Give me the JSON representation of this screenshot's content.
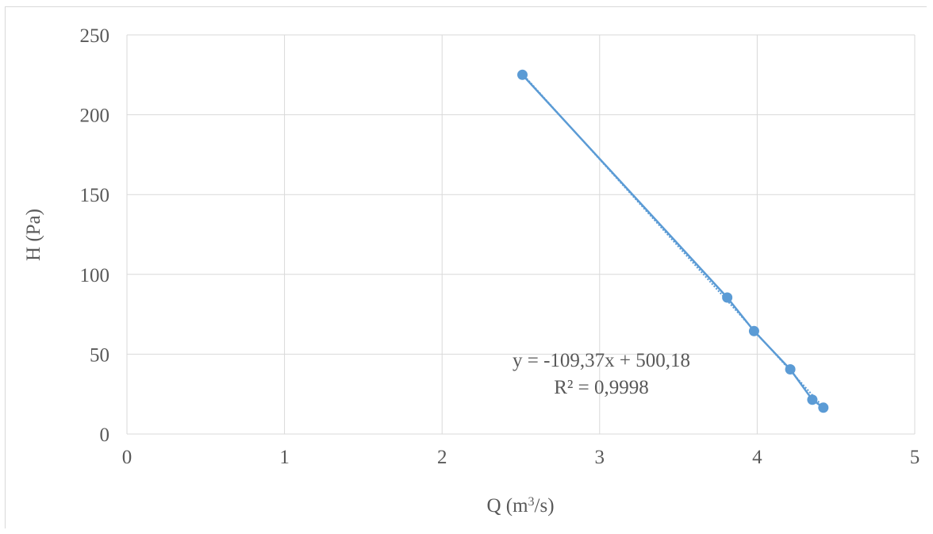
{
  "chart_data": {
    "type": "scatter",
    "x": [
      2.51,
      3.81,
      3.98,
      4.21,
      4.35,
      4.42
    ],
    "y": [
      225,
      85.5,
      64.5,
      40.5,
      21.5,
      16.5
    ],
    "xlabel_prefix": "Q (m",
    "xlabel_sup": "3",
    "xlabel_suffix": "/s)",
    "ylabel": "H (Pa)",
    "xlim": [
      0,
      5
    ],
    "ylim": [
      0,
      250
    ],
    "x_ticks": [
      0,
      1,
      2,
      3,
      4,
      5
    ],
    "y_ticks": [
      0,
      50,
      100,
      150,
      200,
      250
    ],
    "grid": true,
    "series_color": "#5b9bd5",
    "grid_color": "#d9d9d9",
    "trendline": {
      "type": "linear",
      "slope": -109.37,
      "intercept": 500.18,
      "equation_label": "y = -109,37x + 500,18",
      "r2_label": "R² = 0,9998"
    }
  }
}
